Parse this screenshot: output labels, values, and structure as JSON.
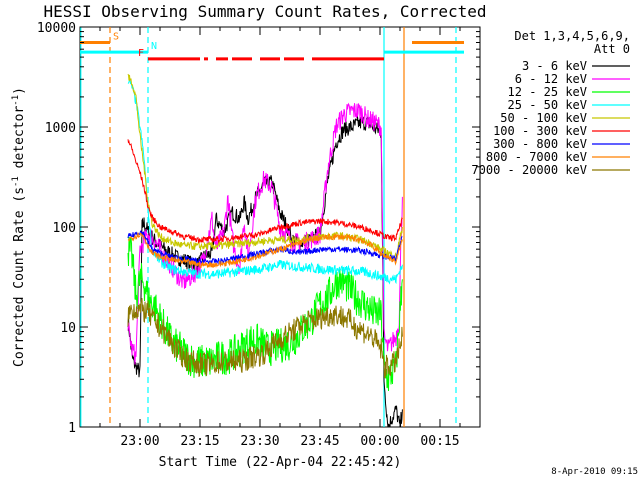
{
  "colors": {
    "axis": "#000000",
    "saa_bar": "#ff8000",
    "night_bar": "#00ffff",
    "flare_bar": "#ff0000"
  },
  "chart_data": {
    "type": "line",
    "title": "HESSI Observing Summary Count Rates, Corrected",
    "xlabel": "Start Time (22-Apr-04 22:45:42)",
    "ylabel": "Corrected Count Rate (s⁻¹ detector⁻¹)",
    "ylabel_parts": {
      "main": "Corrected Count Rate (s",
      "sup1": "-1",
      "mid": " detector",
      "sup2": "-1",
      "end": ")"
    },
    "y_scale": "log",
    "ylim": [
      1,
      10000
    ],
    "xlim_minutes_after_22_45": [
      0,
      100
    ],
    "x_ticks": [
      {
        "label": "23:00",
        "t": 15
      },
      {
        "label": "23:15",
        "t": 30
      },
      {
        "label": "23:30",
        "t": 45
      },
      {
        "label": "23:45",
        "t": 60
      },
      {
        "label": "00:00",
        "t": 75
      },
      {
        "label": "00:15",
        "t": 90
      }
    ],
    "y_ticks": [
      {
        "label": "1",
        "v": 1
      },
      {
        "label": "10",
        "v": 10
      },
      {
        "label": "100",
        "v": 100
      },
      {
        "label": "1000",
        "v": 1000
      },
      {
        "label": "10000",
        "v": 10000
      }
    ],
    "legend": {
      "header1": "Det 1,3,4,5,6,9,",
      "header2": "Att 0",
      "placement": "right"
    },
    "flag_bars": [
      {
        "label": "S",
        "color": "#ff8000",
        "v": 7000,
        "segments": [
          [
            0,
            7.5
          ],
          [
            83,
            96
          ]
        ]
      },
      {
        "label": "N",
        "color": "#00ffff",
        "v": 5600,
        "segments": [
          [
            0,
            17
          ],
          [
            76,
            96
          ]
        ]
      },
      {
        "label": "F",
        "color": "#ff0000",
        "v": 4800,
        "segments": [
          [
            17,
            30
          ],
          [
            31,
            32
          ],
          [
            34,
            37
          ],
          [
            38,
            43
          ],
          [
            45,
            50
          ],
          [
            51,
            56
          ],
          [
            58,
            76
          ]
        ]
      }
    ],
    "vlines": [
      {
        "t": 7.5,
        "color": "#ff8000",
        "dash": true
      },
      {
        "t": 17,
        "color": "#00ffff",
        "dash": true
      },
      {
        "t": 0.2,
        "color": "#00ffff",
        "dash": false
      },
      {
        "t": 76,
        "color": "#00ffff",
        "dash": false
      },
      {
        "t": 81,
        "color": "#ff8000",
        "dash": false
      },
      {
        "t": 94,
        "color": "#00ffff",
        "dash": true
      }
    ],
    "series": [
      {
        "name": "3 - 6 keV",
        "color": "#000000",
        "noise": 0.08,
        "x": [
          12,
          12.5,
          13,
          14,
          15,
          15.5,
          16,
          17,
          19,
          21,
          24,
          27,
          29,
          30,
          31,
          33,
          34,
          36,
          38,
          40,
          41,
          42,
          44,
          46,
          48,
          49,
          50,
          52,
          53,
          55,
          57,
          60,
          62,
          64,
          66,
          68,
          70,
          72,
          74,
          75.3,
          76,
          77,
          79,
          80,
          80.6
        ],
        "y": [
          12,
          8,
          5,
          4,
          3.5,
          100,
          110,
          90,
          70,
          60,
          50,
          45,
          40,
          45,
          50,
          55,
          120,
          90,
          140,
          120,
          180,
          120,
          200,
          270,
          280,
          200,
          140,
          95,
          75,
          70,
          72,
          85,
          300,
          700,
          950,
          1000,
          1100,
          1100,
          950,
          900,
          3,
          1,
          1.5,
          1,
          1.5
        ]
      },
      {
        "name": "6 - 12 keV",
        "color": "#ff00ff",
        "noise": 0.1,
        "x": [
          12,
          13,
          14,
          15,
          17,
          19,
          21,
          23,
          25,
          26,
          28,
          30,
          31,
          33,
          34,
          36,
          37,
          38,
          39,
          40,
          41,
          42,
          44,
          46,
          48,
          50,
          52,
          53,
          55,
          57,
          60,
          62,
          64,
          66,
          68,
          70,
          72,
          74,
          75.3,
          76,
          77,
          78,
          79,
          79.8,
          80.2,
          80.6
        ],
        "y": [
          10,
          6,
          5,
          60,
          85,
          70,
          50,
          40,
          30,
          28,
          32,
          40,
          50,
          120,
          60,
          90,
          200,
          80,
          50,
          40,
          120,
          50,
          200,
          300,
          250,
          100,
          80,
          70,
          70,
          72,
          85,
          400,
          1000,
          1350,
          1450,
          1450,
          1200,
          1100,
          1000,
          8,
          6,
          7,
          8,
          12,
          60,
          200
        ]
      },
      {
        "name": "12 - 25 keV",
        "color": "#00ff00",
        "noise": 0.18,
        "x": [
          12,
          13,
          14,
          15,
          16,
          17,
          19,
          21,
          23,
          25,
          27,
          29,
          31,
          33,
          35,
          37,
          40,
          43,
          45,
          47,
          50,
          53,
          56,
          58,
          60,
          62,
          64,
          65,
          67,
          69,
          71,
          73,
          75.3,
          76,
          77,
          79,
          80.6
        ],
        "y": [
          60,
          50,
          20,
          30,
          28,
          20,
          15,
          10,
          7,
          6,
          5,
          4.5,
          4.5,
          4.5,
          5,
          5,
          6,
          7.5,
          7,
          6,
          6.5,
          7,
          10,
          12,
          17,
          20,
          28,
          30,
          25,
          20,
          17,
          14,
          13,
          4,
          3,
          4,
          30
        ]
      },
      {
        "name": "25 - 50 keV",
        "color": "#00ffff",
        "noise": 0.05,
        "x": [
          12,
          13,
          14,
          15,
          16,
          17,
          18,
          20,
          23,
          27,
          30,
          35,
          40,
          45,
          50,
          55,
          60,
          65,
          70,
          73,
          75,
          77,
          79,
          80.6
        ],
        "y": [
          3000,
          2500,
          1800,
          1000,
          500,
          150,
          60,
          45,
          38,
          35,
          34,
          34,
          36,
          38,
          42,
          40,
          38,
          37,
          36,
          34,
          32,
          31,
          30,
          42
        ]
      },
      {
        "name": "50 - 100 keV",
        "color": "#c8c800",
        "noise": 0.04,
        "x": [
          12,
          13,
          14,
          15,
          16,
          17,
          18,
          20,
          23,
          26,
          30,
          35,
          40,
          45,
          50,
          55,
          60,
          65,
          70,
          73,
          75,
          77,
          79,
          80.6
        ],
        "y": [
          3200,
          2800,
          2000,
          800,
          400,
          180,
          110,
          80,
          70,
          65,
          64,
          65,
          68,
          72,
          75,
          75,
          80,
          82,
          75,
          68,
          60,
          55,
          50,
          100
        ]
      },
      {
        "name": "100 - 300 keV",
        "color": "#ff0000",
        "noise": 0.03,
        "x": [
          12,
          13,
          14,
          15,
          16,
          17,
          18,
          20,
          23,
          26,
          30,
          33,
          36,
          40,
          45,
          50,
          55,
          60,
          65,
          70,
          73,
          75,
          77,
          79,
          80.6
        ],
        "y": [
          750,
          600,
          450,
          350,
          250,
          160,
          125,
          100,
          90,
          80,
          75,
          75,
          76,
          80,
          85,
          100,
          110,
          115,
          110,
          100,
          92,
          85,
          78,
          78,
          120
        ]
      },
      {
        "name": "300 - 800 keV",
        "color": "#0000ff",
        "noise": 0.03,
        "x": [
          12,
          13,
          15,
          16,
          17,
          18,
          20,
          23,
          26,
          30,
          33,
          36,
          40,
          45,
          50,
          53,
          55,
          60,
          65,
          70,
          73,
          75,
          77,
          79,
          80.6
        ],
        "y": [
          80,
          82,
          90,
          85,
          70,
          60,
          55,
          50,
          48,
          45,
          45,
          46,
          50,
          55,
          60,
          57,
          55,
          60,
          60,
          58,
          55,
          52,
          50,
          48,
          80
        ]
      },
      {
        "name": "800 - 7000 keV",
        "color": "#ff8000",
        "noise": 0.03,
        "x": [
          12,
          13,
          15,
          16,
          17,
          18,
          20,
          23,
          26,
          30,
          33,
          36,
          40,
          45,
          50,
          53,
          55,
          60,
          65,
          70,
          73,
          75,
          77,
          79,
          80.6
        ],
        "y": [
          75,
          78,
          85,
          80,
          65,
          55,
          50,
          47,
          45,
          42,
          42,
          43,
          46,
          52,
          60,
          65,
          70,
          78,
          80,
          75,
          65,
          55,
          50,
          45,
          75
        ]
      },
      {
        "name": "7000 - 20000 keV",
        "color": "#8c7800",
        "noise": 0.12,
        "x": [
          12,
          13,
          15,
          17,
          18,
          20,
          22,
          24,
          26,
          28,
          30,
          33,
          35,
          37,
          40,
          43,
          46,
          48,
          50,
          53,
          56,
          59,
          62,
          64,
          65,
          67,
          69,
          71,
          73,
          75.3,
          76,
          77,
          79,
          80.6
        ],
        "y": [
          13,
          15,
          15,
          14,
          12,
          10,
          8,
          6,
          5,
          4.5,
          4.2,
          4.2,
          4.5,
          4.5,
          4.5,
          5,
          5.5,
          6.5,
          7.5,
          9,
          11,
          12,
          13,
          13.5,
          13,
          12,
          10,
          9,
          8,
          6,
          4,
          4,
          4.5,
          8
        ]
      }
    ]
  },
  "footer_date": "8-Apr-2010 09:15"
}
